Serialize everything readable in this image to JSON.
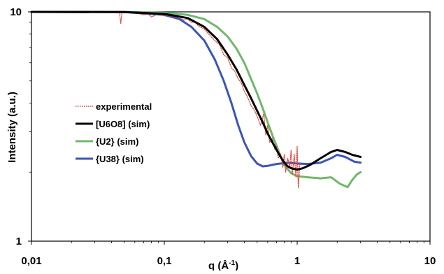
{
  "chart_data": {
    "type": "line",
    "title": "",
    "xlabel": "q (Å",
    "xlabel_sup": "-1",
    "xlabel_close": ")",
    "ylabel": "Intensity (a.u.)",
    "x_scale": "log",
    "y_scale": "log",
    "xlim": [
      0.01,
      10
    ],
    "ylim": [
      1,
      10
    ],
    "x_ticks": [
      0.01,
      0.1,
      1,
      10
    ],
    "x_tick_labels": [
      "0,01",
      "0,1",
      "1",
      "10"
    ],
    "y_ticks": [
      1,
      10
    ],
    "y_tick_labels": [
      "1",
      "10"
    ],
    "grid": false,
    "legend_position": "center-left",
    "series": [
      {
        "name": "experimental",
        "style": "dotted",
        "color": "#e8413a",
        "points": [
          [
            0.045,
            10.0
          ],
          [
            0.046,
            9.98
          ],
          [
            0.047,
            8.9
          ],
          [
            0.048,
            9.95
          ],
          [
            0.06,
            9.92
          ],
          [
            0.07,
            9.7
          ],
          [
            0.075,
            9.85
          ],
          [
            0.08,
            9.5
          ],
          [
            0.09,
            9.8
          ],
          [
            0.1,
            9.6
          ],
          [
            0.11,
            9.7
          ],
          [
            0.12,
            9.45
          ],
          [
            0.13,
            9.5
          ],
          [
            0.14,
            9.2
          ],
          [
            0.15,
            9.3
          ],
          [
            0.16,
            9.0
          ],
          [
            0.17,
            9.05
          ],
          [
            0.18,
            8.7
          ],
          [
            0.2,
            8.4
          ],
          [
            0.22,
            7.9
          ],
          [
            0.24,
            7.5
          ],
          [
            0.26,
            7.2
          ],
          [
            0.28,
            6.5
          ],
          [
            0.3,
            6.3
          ],
          [
            0.32,
            5.7
          ],
          [
            0.34,
            5.5
          ],
          [
            0.36,
            5.1
          ],
          [
            0.38,
            4.9
          ],
          [
            0.4,
            4.5
          ],
          [
            0.42,
            4.3
          ],
          [
            0.45,
            3.9
          ],
          [
            0.48,
            3.7
          ],
          [
            0.5,
            3.5
          ],
          [
            0.53,
            3.2
          ],
          [
            0.56,
            3.6
          ],
          [
            0.58,
            2.9
          ],
          [
            0.6,
            3.2
          ],
          [
            0.62,
            2.7
          ],
          [
            0.65,
            2.8
          ],
          [
            0.68,
            2.5
          ],
          [
            0.7,
            2.6
          ],
          [
            0.72,
            2.3
          ],
          [
            0.75,
            2.4
          ],
          [
            0.78,
            2.1
          ],
          [
            0.8,
            2.4
          ],
          [
            0.82,
            2.0
          ],
          [
            0.85,
            2.3
          ],
          [
            0.88,
            2.1
          ],
          [
            0.9,
            2.5
          ],
          [
            0.92,
            1.95
          ],
          [
            0.95,
            2.4
          ],
          [
            0.98,
            1.9
          ],
          [
            1.0,
            2.6
          ],
          [
            1.02,
            1.7
          ],
          [
            1.05,
            2.2
          ]
        ]
      },
      {
        "name": "[U6O8] (sim)",
        "style": "solid",
        "color": "#000000",
        "points": [
          [
            0.01,
            10.0
          ],
          [
            0.05,
            9.98
          ],
          [
            0.1,
            9.8
          ],
          [
            0.15,
            9.4
          ],
          [
            0.2,
            8.6
          ],
          [
            0.25,
            7.6
          ],
          [
            0.3,
            6.5
          ],
          [
            0.35,
            5.6
          ],
          [
            0.4,
            4.8
          ],
          [
            0.45,
            4.2
          ],
          [
            0.5,
            3.7
          ],
          [
            0.55,
            3.3
          ],
          [
            0.6,
            2.95
          ],
          [
            0.65,
            2.7
          ],
          [
            0.7,
            2.5
          ],
          [
            0.75,
            2.33
          ],
          [
            0.8,
            2.2
          ],
          [
            0.85,
            2.12
          ],
          [
            0.9,
            2.08
          ],
          [
            1.0,
            2.05
          ],
          [
            1.1,
            2.08
          ],
          [
            1.25,
            2.15
          ],
          [
            1.5,
            2.3
          ],
          [
            1.8,
            2.45
          ],
          [
            2.0,
            2.5
          ],
          [
            2.3,
            2.45
          ],
          [
            2.6,
            2.38
          ],
          [
            3.0,
            2.33
          ]
        ]
      },
      {
        "name": "{U2} (sim)",
        "style": "solid",
        "color": "#6fb86a",
        "points": [
          [
            0.01,
            10.0
          ],
          [
            0.05,
            10.0
          ],
          [
            0.1,
            9.9
          ],
          [
            0.15,
            9.7
          ],
          [
            0.2,
            9.3
          ],
          [
            0.25,
            8.6
          ],
          [
            0.3,
            7.8
          ],
          [
            0.35,
            6.9
          ],
          [
            0.4,
            6.0
          ],
          [
            0.45,
            5.1
          ],
          [
            0.5,
            4.4
          ],
          [
            0.55,
            3.8
          ],
          [
            0.6,
            3.3
          ],
          [
            0.65,
            2.9
          ],
          [
            0.7,
            2.6
          ],
          [
            0.75,
            2.35
          ],
          [
            0.8,
            2.15
          ],
          [
            0.9,
            1.98
          ],
          [
            1.0,
            1.92
          ],
          [
            1.2,
            1.9
          ],
          [
            1.5,
            1.88
          ],
          [
            1.8,
            1.9
          ],
          [
            2.1,
            1.78
          ],
          [
            2.4,
            1.72
          ],
          [
            2.6,
            1.85
          ],
          [
            2.8,
            1.95
          ],
          [
            3.0,
            2.0
          ]
        ]
      },
      {
        "name": "{U38} (sim)",
        "style": "solid",
        "color": "#3b55b8",
        "points": [
          [
            0.01,
            10.0
          ],
          [
            0.05,
            9.98
          ],
          [
            0.1,
            9.7
          ],
          [
            0.13,
            9.3
          ],
          [
            0.16,
            8.6
          ],
          [
            0.2,
            7.5
          ],
          [
            0.24,
            6.2
          ],
          [
            0.28,
            5.0
          ],
          [
            0.32,
            4.0
          ],
          [
            0.36,
            3.2
          ],
          [
            0.4,
            2.7
          ],
          [
            0.45,
            2.35
          ],
          [
            0.5,
            2.18
          ],
          [
            0.55,
            2.12
          ],
          [
            0.6,
            2.13
          ],
          [
            0.7,
            2.17
          ],
          [
            0.85,
            2.2
          ],
          [
            1.0,
            2.18
          ],
          [
            1.2,
            2.17
          ],
          [
            1.5,
            2.2
          ],
          [
            1.8,
            2.3
          ],
          [
            2.0,
            2.38
          ],
          [
            2.3,
            2.33
          ],
          [
            2.7,
            2.22
          ],
          [
            3.0,
            2.2
          ]
        ]
      }
    ]
  }
}
